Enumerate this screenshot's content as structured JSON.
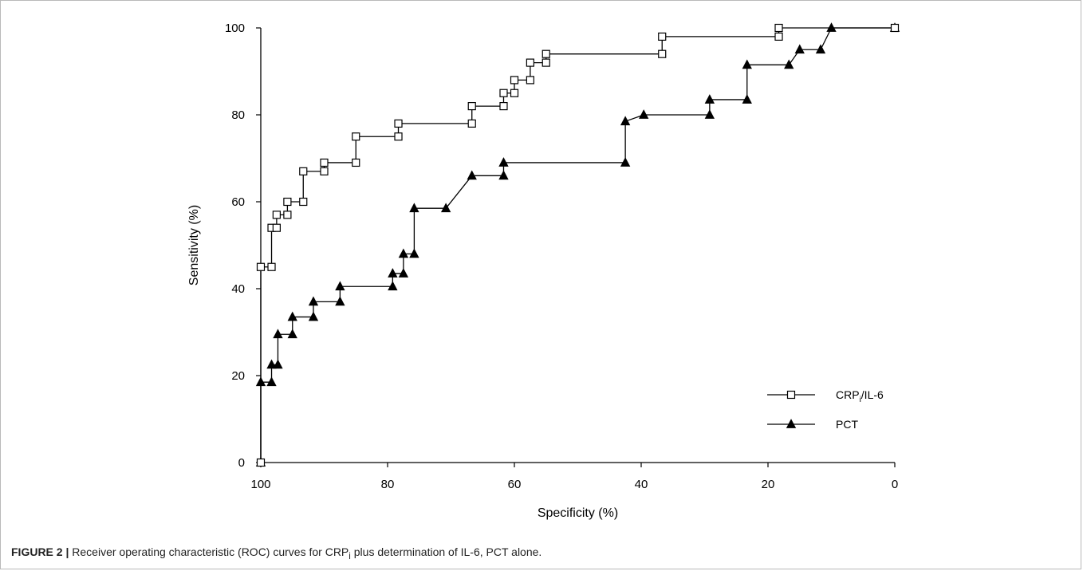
{
  "chart_data": {
    "type": "line",
    "xlabel": "Specificity (%)",
    "ylabel": "Sensitivity (%)",
    "xlim": [
      100,
      0
    ],
    "ylim": [
      0,
      100
    ],
    "x_reversed": true,
    "x_ticks": [
      "100",
      "80",
      "60",
      "40",
      "20",
      "0"
    ],
    "y_ticks": [
      "0",
      "20",
      "40",
      "60",
      "80",
      "100"
    ],
    "grid": false,
    "legend_position": "bottom-right",
    "series": [
      {
        "name": "CRPi/IL-6",
        "legend_main": "CRP",
        "legend_sub": "i",
        "legend_rest": "/IL-6",
        "marker": "open-square",
        "color": "#000000",
        "x": [
          100,
          100,
          98.3,
          98.3,
          97.5,
          97.5,
          95.8,
          95.8,
          93.3,
          93.3,
          90,
          90,
          85,
          85,
          78.3,
          78.3,
          66.7,
          66.7,
          61.7,
          61.7,
          60,
          60,
          57.5,
          57.5,
          55,
          55,
          36.7,
          36.7,
          18.3,
          18.3,
          0
        ],
        "y": [
          0,
          45,
          45,
          54,
          54,
          57,
          57,
          60,
          60,
          67,
          67,
          69,
          69,
          75,
          75,
          78,
          78,
          82,
          82,
          85,
          85,
          88,
          88,
          92,
          92,
          94,
          94,
          98,
          98,
          100,
          100
        ]
      },
      {
        "name": "PCT",
        "legend_main": "PCT",
        "marker": "filled-triangle",
        "color": "#000000",
        "x": [
          100,
          100,
          98.3,
          98.3,
          97.3,
          97.3,
          95,
          95,
          91.7,
          91.7,
          87.5,
          87.5,
          79.2,
          79.2,
          77.5,
          77.5,
          75.8,
          75.8,
          70.8,
          66.7,
          61.7,
          61.7,
          42.5,
          42.5,
          39.6,
          29.2,
          29.2,
          23.3,
          23.3,
          16.7,
          15,
          11.7,
          10,
          0
        ],
        "y": [
          0,
          18.5,
          18.5,
          22.5,
          22.5,
          29.5,
          29.5,
          33.5,
          33.5,
          37,
          37,
          40.5,
          40.5,
          43.5,
          43.5,
          48,
          48,
          58.5,
          58.5,
          66,
          66,
          69,
          69,
          78.5,
          80,
          80,
          83.5,
          83.5,
          91.5,
          91.5,
          95,
          95,
          100,
          100
        ]
      }
    ]
  },
  "caption": {
    "label": "FIGURE 2",
    "separator": "|",
    "text_before": "Receiver operating characteristic (ROC) curves for CRP",
    "text_sub": "i",
    "text_after": " plus determination of IL-6, PCT alone."
  }
}
